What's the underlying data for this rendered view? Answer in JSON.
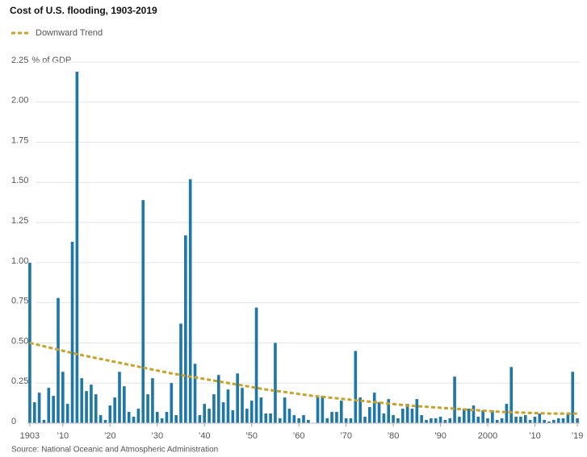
{
  "chart_data": {
    "type": "bar",
    "title": "Cost of U.S. flooding, 1903-2019",
    "source": "Source: National Oceanic and Atmospheric Administration",
    "y_unit": "% of GDP",
    "color": "#1f77a8",
    "x": [
      1903,
      1904,
      1905,
      1906,
      1907,
      1908,
      1909,
      1910,
      1911,
      1912,
      1913,
      1914,
      1915,
      1916,
      1917,
      1918,
      1919,
      1920,
      1921,
      1922,
      1923,
      1924,
      1925,
      1926,
      1927,
      1928,
      1929,
      1930,
      1931,
      1932,
      1933,
      1934,
      1935,
      1936,
      1937,
      1938,
      1939,
      1940,
      1941,
      1942,
      1943,
      1944,
      1945,
      1946,
      1947,
      1948,
      1949,
      1950,
      1951,
      1952,
      1953,
      1954,
      1955,
      1956,
      1957,
      1958,
      1959,
      1960,
      1961,
      1962,
      1963,
      1964,
      1965,
      1966,
      1967,
      1968,
      1969,
      1970,
      1971,
      1972,
      1973,
      1974,
      1975,
      1976,
      1977,
      1978,
      1979,
      1980,
      1981,
      1982,
      1983,
      1984,
      1985,
      1986,
      1987,
      1988,
      1989,
      1990,
      1991,
      1992,
      1993,
      1994,
      1995,
      1996,
      1997,
      1998,
      1999,
      2000,
      2001,
      2002,
      2003,
      2004,
      2005,
      2006,
      2007,
      2008,
      2009,
      2010,
      2011,
      2012,
      2013,
      2014,
      2015,
      2016,
      2017,
      2018,
      2019
    ],
    "values": [
      1.0,
      0.13,
      0.19,
      0.02,
      0.22,
      0.17,
      0.78,
      0.32,
      0.12,
      1.13,
      2.19,
      0.28,
      0.2,
      0.24,
      0.18,
      0.05,
      0.02,
      0.11,
      0.16,
      0.32,
      0.23,
      0.07,
      0.04,
      0.09,
      1.39,
      0.18,
      0.28,
      0.07,
      0.03,
      0.07,
      0.25,
      0.05,
      0.62,
      1.17,
      1.52,
      0.37,
      0.05,
      0.12,
      0.09,
      0.18,
      0.3,
      0.13,
      0.21,
      0.08,
      0.31,
      0.22,
      0.09,
      0.14,
      0.72,
      0.16,
      0.06,
      0.06,
      0.5,
      0.03,
      0.16,
      0.09,
      0.05,
      0.03,
      0.05,
      0.02,
      0.0,
      0.17,
      0.17,
      0.03,
      0.07,
      0.07,
      0.14,
      0.03,
      0.03,
      0.45,
      0.16,
      0.04,
      0.1,
      0.19,
      0.13,
      0.06,
      0.15,
      0.05,
      0.03,
      0.09,
      0.12,
      0.09,
      0.15,
      0.05,
      0.02,
      0.03,
      0.03,
      0.04,
      0.02,
      0.03,
      0.29,
      0.04,
      0.09,
      0.09,
      0.11,
      0.04,
      0.08,
      0.03,
      0.08,
      0.02,
      0.03,
      0.12,
      0.35,
      0.04,
      0.04,
      0.05,
      0.02,
      0.04,
      0.06,
      0.02,
      0.01,
      0.02,
      0.03,
      0.03,
      0.06,
      0.32,
      0.03
    ],
    "trend": {
      "name": "Downward Trend",
      "color": "#c9a227",
      "x": [
        1903,
        1913,
        1923,
        1933,
        1943,
        1953,
        1963,
        1973,
        1983,
        1993,
        2003,
        2013,
        2019
      ],
      "values": [
        0.5,
        0.43,
        0.37,
        0.31,
        0.26,
        0.21,
        0.17,
        0.14,
        0.11,
        0.09,
        0.07,
        0.06,
        0.06
      ]
    },
    "xlim": [
      1902.5,
      2019.5
    ],
    "xticks": [
      {
        "value": 1903,
        "label": "1903"
      },
      {
        "value": 1910,
        "label": "’10"
      },
      {
        "value": 1920,
        "label": "’20"
      },
      {
        "value": 1930,
        "label": "’30"
      },
      {
        "value": 1940,
        "label": "’40"
      },
      {
        "value": 1950,
        "label": "’50"
      },
      {
        "value": 1960,
        "label": "’60"
      },
      {
        "value": 1970,
        "label": "’70"
      },
      {
        "value": 1980,
        "label": "’80"
      },
      {
        "value": 1990,
        "label": "’90"
      },
      {
        "value": 2000,
        "label": "2000"
      },
      {
        "value": 2010,
        "label": "’10"
      },
      {
        "value": 2019,
        "label": "’19"
      }
    ],
    "ylim": [
      0,
      2.25
    ],
    "yticks": [
      0,
      {
        "value": 0.25,
        "label": "0.25"
      },
      {
        "value": 0.5,
        "label": "0.50"
      },
      {
        "value": 0.75,
        "label": "0.75"
      },
      {
        "value": 1,
        "label": "1.00"
      },
      {
        "value": 1.25,
        "label": "1.25"
      },
      {
        "value": 1.5,
        "label": "1.50"
      },
      {
        "value": 1.75,
        "label": "1.75"
      },
      {
        "value": 2,
        "label": "2.00"
      },
      {
        "value": 2.25,
        "label": "2.25"
      }
    ],
    "grid": true
  }
}
